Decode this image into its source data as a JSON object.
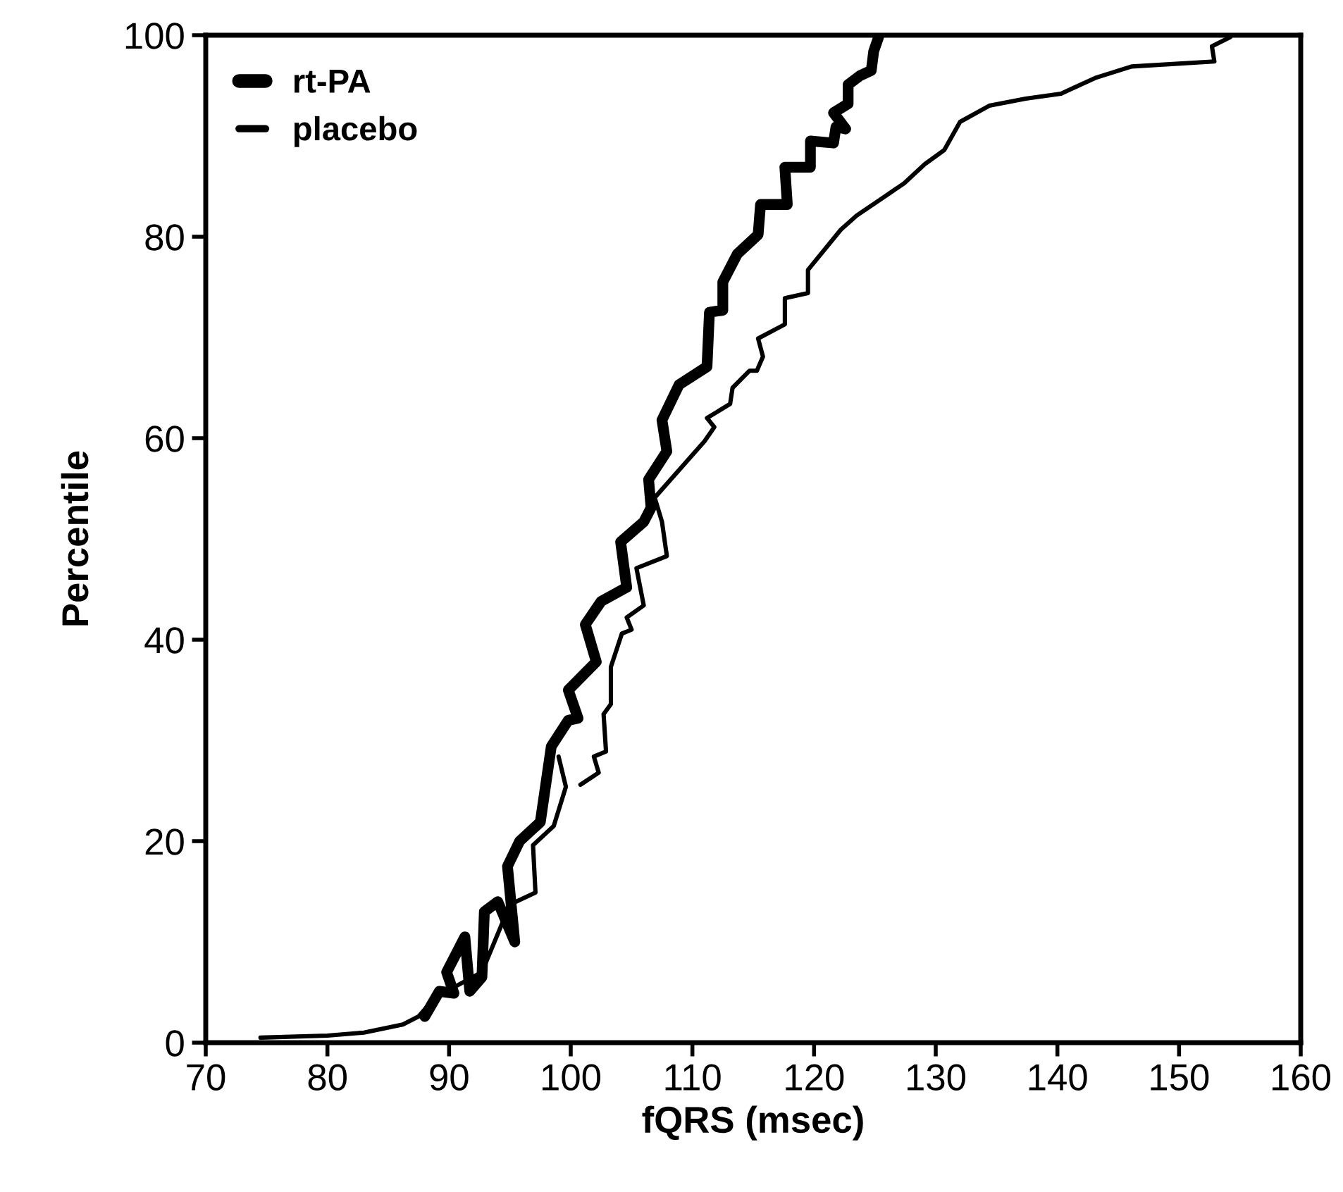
{
  "chart_data": {
    "type": "line",
    "xlabel": "fQRS (msec)",
    "ylabel": "Percentile",
    "xlim": [
      70,
      160
    ],
    "ylim": [
      0,
      100
    ],
    "xticks": [
      70,
      80,
      90,
      100,
      110,
      120,
      130,
      140,
      150,
      160
    ],
    "yticks": [
      0,
      20,
      40,
      60,
      80,
      100
    ],
    "grid": false,
    "legend": "top left",
    "marker": "none",
    "line_style": "solid",
    "series": [
      {
        "name": "rt-PA",
        "color": "#000000",
        "x": [
          88.0,
          89.2,
          90.4,
          89.8,
          91.3,
          91.7,
          92.7,
          92.9,
          94.0,
          95.4,
          94.8,
          95.8,
          97.5,
          98.4,
          99.8,
          100.6,
          99.8,
          102.1,
          101.2,
          102.5,
          104.6,
          104.1,
          106.0,
          106.6,
          106.4,
          107.9,
          107.5,
          108.9,
          111.2,
          111.4,
          112.5,
          112.5,
          113.7,
          115.4,
          115.6,
          117.8,
          117.6,
          119.7,
          119.7,
          121.6,
          121.8,
          122.6,
          121.6,
          122.8,
          122.8,
          123.8,
          124.7,
          124.9,
          125.3
        ],
        "values": [
          2.6,
          5.1,
          4.9,
          7.0,
          10.5,
          5.1,
          6.5,
          13.0,
          14.0,
          10.0,
          17.5,
          20.0,
          21.9,
          29.4,
          32.0,
          32.2,
          35.0,
          37.8,
          41.5,
          43.8,
          45.2,
          49.7,
          51.7,
          53.1,
          55.9,
          58.7,
          61.8,
          65.3,
          67.1,
          72.5,
          72.7,
          75.5,
          78.3,
          80.2,
          83.2,
          83.2,
          86.9,
          86.9,
          89.5,
          89.3,
          90.9,
          90.7,
          92.3,
          93.2,
          95.1,
          96.0,
          96.5,
          98.4,
          99.8
        ]
      },
      {
        "name": "placebo",
        "color": "#000000",
        "x": [
          74.5,
          80.0,
          83.0,
          86.2,
          87.5,
          89.2,
          90.4,
          92.7,
          95.0,
          97.1,
          96.9,
          98.6,
          99.6,
          99.0,
          null,
          100.8,
          102.3,
          101.9,
          102.9,
          102.7,
          103.3,
          103.3,
          104.2,
          105.0,
          104.6,
          106.0,
          105.4,
          107.9,
          107.5,
          106.9,
          111.0,
          111.8,
          111.2,
          113.1,
          113.3,
          114.7,
          115.3,
          115.8,
          115.4,
          117.6,
          117.6,
          119.5,
          119.5,
          122.2,
          123.5,
          125.7,
          127.4,
          129.1,
          130.7,
          132.0,
          134.4,
          137.4,
          140.3,
          143.2,
          146.1,
          152.9,
          152.7,
          154.2
        ],
        "values": [
          0.5,
          0.7,
          1.0,
          1.8,
          2.6,
          5.0,
          5.5,
          7.0,
          13.7,
          14.9,
          19.6,
          21.5,
          25.4,
          28.4,
          null,
          25.6,
          26.8,
          28.4,
          28.9,
          32.6,
          33.6,
          37.3,
          40.6,
          41.0,
          42.2,
          43.4,
          47.1,
          48.3,
          51.7,
          54.1,
          59.7,
          61.1,
          62.0,
          63.4,
          65.0,
          66.7,
          66.7,
          68.1,
          69.9,
          71.3,
          73.9,
          74.4,
          76.7,
          80.7,
          82.1,
          83.9,
          85.3,
          87.2,
          88.6,
          91.4,
          93.0,
          93.7,
          94.2,
          95.8,
          96.9,
          97.4,
          98.9,
          99.8
        ]
      }
    ]
  }
}
